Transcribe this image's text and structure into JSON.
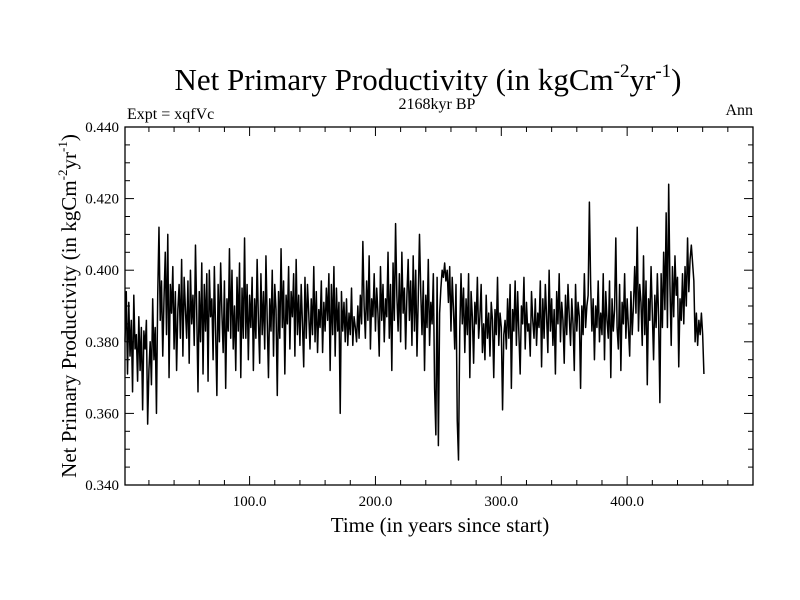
{
  "chart_data": {
    "type": "line",
    "title": {
      "main": "Net Primary Productivity (in kgCm",
      "sup1": "-2",
      "mid": "yr",
      "sup2": "-1",
      "end": ")"
    },
    "subtitle_left": "Expt = xqfVc",
    "subtitle_center": "2168kyr BP",
    "subtitle_right": "Ann",
    "xlabel": "Time (in years since start)",
    "ylabel": {
      "main": "Net Primary Productivity (in kgCm",
      "sup1": "-2",
      "mid": "yr",
      "sup2": "-1",
      "end": ")"
    },
    "xlim": [
      1,
      500
    ],
    "ylim": [
      0.34,
      0.44
    ],
    "x_ticks": [
      100,
      200,
      300,
      400
    ],
    "x_tick_labels": [
      "100.0",
      "200.0",
      "300.0",
      "400.0"
    ],
    "y_ticks": [
      0.34,
      0.36,
      0.38,
      0.4,
      0.42,
      0.44
    ],
    "y_tick_labels": [
      "0.340",
      "0.360",
      "0.380",
      "0.400",
      "0.420",
      "0.440"
    ],
    "grid": false,
    "series": [
      {
        "name": "Net Primary Productivity",
        "x_start": 1,
        "x_step": 1,
        "values": [
          0.38,
          0.394,
          0.371,
          0.391,
          0.376,
          0.386,
          0.366,
          0.393,
          0.378,
          0.382,
          0.369,
          0.387,
          0.372,
          0.384,
          0.361,
          0.383,
          0.378,
          0.386,
          0.357,
          0.372,
          0.38,
          0.368,
          0.392,
          0.375,
          0.384,
          0.36,
          0.393,
          0.412,
          0.386,
          0.397,
          0.376,
          0.392,
          0.405,
          0.382,
          0.41,
          0.37,
          0.396,
          0.388,
          0.401,
          0.378,
          0.394,
          0.372,
          0.389,
          0.396,
          0.381,
          0.403,
          0.376,
          0.398,
          0.389,
          0.381,
          0.397,
          0.374,
          0.4,
          0.385,
          0.393,
          0.379,
          0.407,
          0.388,
          0.366,
          0.394,
          0.38,
          0.402,
          0.371,
          0.396,
          0.383,
          0.399,
          0.369,
          0.4,
          0.387,
          0.392,
          0.375,
          0.401,
          0.383,
          0.365,
          0.396,
          0.38,
          0.402,
          0.388,
          0.377,
          0.397,
          0.367,
          0.392,
          0.383,
          0.406,
          0.381,
          0.4,
          0.378,
          0.39,
          0.372,
          0.398,
          0.383,
          0.402,
          0.37,
          0.395,
          0.381,
          0.409,
          0.381,
          0.396,
          0.375,
          0.393,
          0.384,
          0.398,
          0.372,
          0.392,
          0.381,
          0.403,
          0.386,
          0.374,
          0.399,
          0.382,
          0.394,
          0.378,
          0.404,
          0.386,
          0.37,
          0.392,
          0.383,
          0.4,
          0.376,
          0.396,
          0.389,
          0.365,
          0.394,
          0.381,
          0.406,
          0.384,
          0.397,
          0.371,
          0.393,
          0.385,
          0.401,
          0.378,
          0.394,
          0.387,
          0.399,
          0.376,
          0.403,
          0.382,
          0.393,
          0.379,
          0.396,
          0.385,
          0.373,
          0.398,
          0.381,
          0.396,
          0.388,
          0.378,
          0.392,
          0.382,
          0.401,
          0.38,
          0.394,
          0.377,
          0.389,
          0.384,
          0.397,
          0.377,
          0.391,
          0.383,
          0.395,
          0.386,
          0.399,
          0.372,
          0.396,
          0.382,
          0.401,
          0.376,
          0.395,
          0.383,
          0.391,
          0.36,
          0.394,
          0.383,
          0.391,
          0.38,
          0.392,
          0.379,
          0.388,
          0.382,
          0.395,
          0.379,
          0.387,
          0.384,
          0.38,
          0.39,
          0.381,
          0.393,
          0.385,
          0.408,
          0.39,
          0.381,
          0.397,
          0.386,
          0.404,
          0.378,
          0.392,
          0.387,
          0.399,
          0.383,
          0.395,
          0.388,
          0.376,
          0.401,
          0.386,
          0.396,
          0.38,
          0.392,
          0.387,
          0.405,
          0.381,
          0.396,
          0.372,
          0.402,
          0.386,
          0.413,
          0.393,
          0.383,
          0.399,
          0.38,
          0.405,
          0.388,
          0.395,
          0.378,
          0.393,
          0.403,
          0.386,
          0.397,
          0.379,
          0.404,
          0.383,
          0.4,
          0.376,
          0.392,
          0.41,
          0.394,
          0.382,
          0.397,
          0.372,
          0.393,
          0.384,
          0.403,
          0.379,
          0.391,
          0.385,
          0.399,
          0.367,
          0.354,
          0.398,
          0.351,
          0.388,
          0.395,
          0.4,
          0.398,
          0.402,
          0.397,
          0.4,
          0.391,
          0.401,
          0.383,
          0.398,
          0.389,
          0.378,
          0.396,
          0.358,
          0.347,
          0.383,
          0.399,
          0.385,
          0.395,
          0.377,
          0.392,
          0.382,
          0.399,
          0.37,
          0.394,
          0.387,
          0.374,
          0.391,
          0.385,
          0.398,
          0.381,
          0.387,
          0.396,
          0.377,
          0.385,
          0.375,
          0.393,
          0.381,
          0.388,
          0.376,
          0.391,
          0.386,
          0.37,
          0.389,
          0.382,
          0.398,
          0.379,
          0.388,
          0.384,
          0.361,
          0.382,
          0.386,
          0.378,
          0.392,
          0.381,
          0.396,
          0.367,
          0.389,
          0.383,
          0.397,
          0.379,
          0.394,
          0.382,
          0.371,
          0.39,
          0.385,
          0.398,
          0.378,
          0.391,
          0.383,
          0.385,
          0.376,
          0.394,
          0.386,
          0.381,
          0.392,
          0.379,
          0.388,
          0.384,
          0.397,
          0.373,
          0.392,
          0.381,
          0.396,
          0.387,
          0.377,
          0.4,
          0.383,
          0.392,
          0.379,
          0.389,
          0.371,
          0.394,
          0.385,
          0.399,
          0.38,
          0.391,
          0.386,
          0.374,
          0.393,
          0.382,
          0.396,
          0.387,
          0.379,
          0.392,
          0.385,
          0.372,
          0.396,
          0.383,
          0.391,
          0.387,
          0.367,
          0.39,
          0.382,
          0.399,
          0.384,
          0.39,
          0.393,
          0.419,
          0.396,
          0.383,
          0.392,
          0.375,
          0.39,
          0.384,
          0.397,
          0.38,
          0.388,
          0.382,
          0.399,
          0.375,
          0.394,
          0.386,
          0.381,
          0.397,
          0.37,
          0.392,
          0.383,
          0.389,
          0.409,
          0.384,
          0.378,
          0.396,
          0.372,
          0.391,
          0.385,
          0.399,
          0.381,
          0.392,
          0.384,
          0.376,
          0.394,
          0.382,
          0.39,
          0.401,
          0.388,
          0.412,
          0.383,
          0.396,
          0.391,
          0.379,
          0.404,
          0.382,
          0.397,
          0.368,
          0.392,
          0.386,
          0.401,
          0.388,
          0.375,
          0.393,
          0.384,
          0.399,
          0.387,
          0.363,
          0.399,
          0.384,
          0.405,
          0.389,
          0.416,
          0.384,
          0.424,
          0.396,
          0.379,
          0.401,
          0.387,
          0.404,
          0.393,
          0.398,
          0.373,
          0.392,
          0.386,
          0.399,
          0.385,
          0.401,
          0.39,
          0.409,
          0.394,
          0.403,
          0.407,
          0.402,
          0.397,
          0.38,
          0.388,
          0.379,
          0.386,
          0.382,
          0.388,
          0.382,
          0.371
        ]
      }
    ]
  }
}
